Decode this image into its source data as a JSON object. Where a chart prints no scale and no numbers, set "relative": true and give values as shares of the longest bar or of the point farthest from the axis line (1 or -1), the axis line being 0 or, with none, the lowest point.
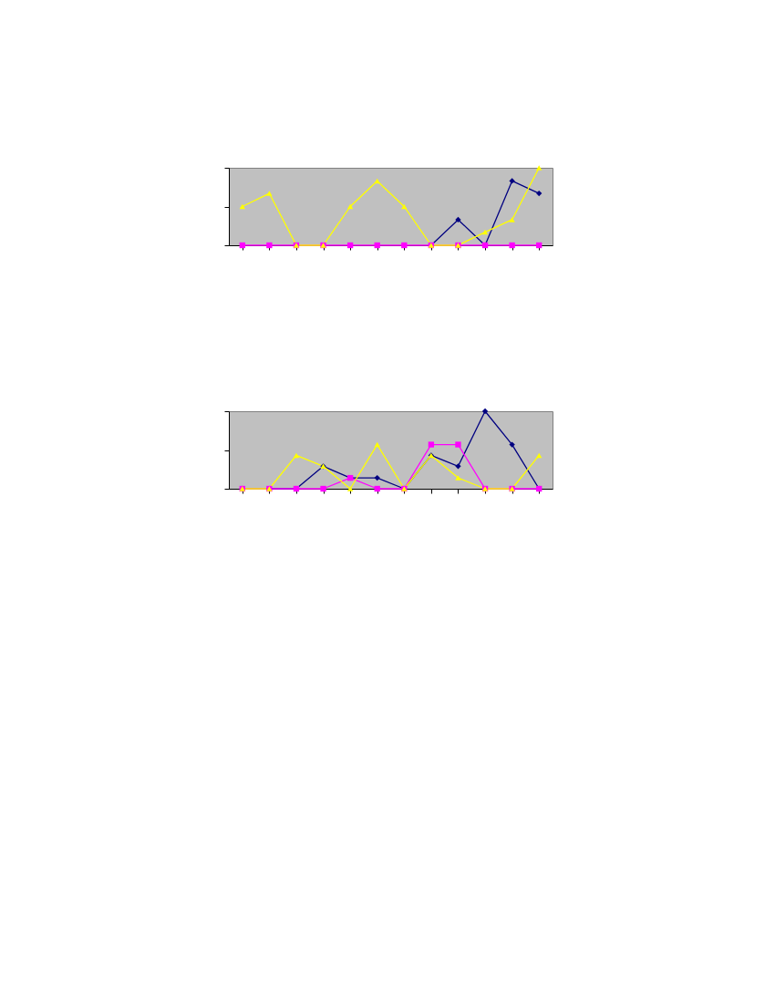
{
  "chart_data": [
    {
      "type": "line",
      "relative": true,
      "categories": [
        null,
        null,
        null,
        null,
        null,
        null,
        null,
        null,
        null,
        null,
        null,
        null
      ],
      "series": [
        {
          "color": "#000080",
          "marker": "diamond",
          "values": [
            null,
            null,
            null,
            null,
            null,
            null,
            null,
            0,
            0.33,
            0,
            0.83,
            0.67
          ]
        },
        {
          "color": "#ff00ff",
          "marker": "square",
          "values": [
            0,
            0,
            0,
            0,
            0,
            0,
            0,
            0,
            0,
            0,
            0,
            0
          ]
        },
        {
          "color": "#ffff00",
          "marker": "triangle",
          "values": [
            0.5,
            0.67,
            0,
            0,
            0.5,
            0.83,
            0.5,
            0,
            0,
            0.17,
            0.33,
            1
          ]
        }
      ]
    },
    {
      "type": "line",
      "relative": true,
      "categories": [
        null,
        null,
        null,
        null,
        null,
        null,
        null,
        null,
        null,
        null,
        null,
        null
      ],
      "series": [
        {
          "color": "#000080",
          "marker": "diamond",
          "values": [
            0,
            0,
            0,
            0.29,
            0.14,
            0.14,
            0,
            0.43,
            0.29,
            1,
            0.57,
            0
          ]
        },
        {
          "color": "#ff00ff",
          "marker": "square",
          "values": [
            0,
            0,
            0,
            0,
            0.14,
            0,
            0,
            0.57,
            0.57,
            0,
            0,
            0
          ]
        },
        {
          "color": "#ffff00",
          "marker": "triangle",
          "values": [
            0,
            0,
            0.43,
            0.29,
            0,
            0.57,
            0,
            0.43,
            0.14,
            0,
            0,
            0.43
          ]
        }
      ]
    }
  ]
}
